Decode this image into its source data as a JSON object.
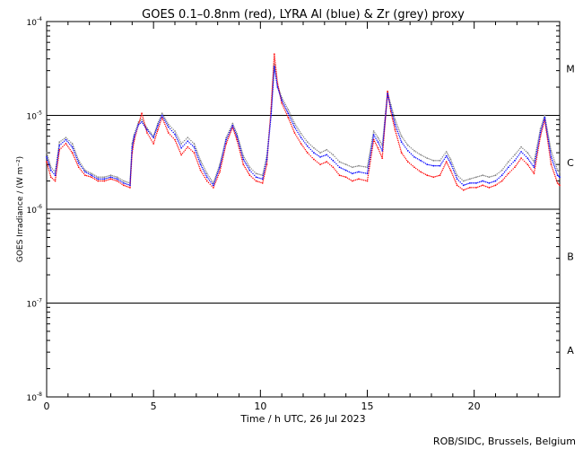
{
  "chart_data": {
    "type": "scatter",
    "title": "GOES 0.1–0.8nm (red), LYRA Al (blue) & Zr (grey) proxy",
    "xlabel": "Time / h UTC, 26 Jul 2023",
    "ylabel": "GOES Irradiance / (W m⁻²)",
    "credit": "ROB/SIDC, Brussels, Belgium",
    "xlim": [
      0,
      24
    ],
    "ylim_log10": [
      -8,
      -4
    ],
    "log_scale_y": true,
    "x_ticks": [
      {
        "value": 0,
        "label": "0"
      },
      {
        "value": 5,
        "label": "5"
      },
      {
        "value": 10,
        "label": "10"
      },
      {
        "value": 15,
        "label": "15"
      },
      {
        "value": 20,
        "label": "20"
      }
    ],
    "y_ticks": [
      {
        "exp": -8,
        "label": "10",
        "sup": "-8"
      },
      {
        "exp": -7,
        "label": "10",
        "sup": "-7"
      },
      {
        "exp": -6,
        "label": "10",
        "sup": "-6"
      },
      {
        "exp": -5,
        "label": "10",
        "sup": "-5"
      },
      {
        "exp": -4,
        "label": "10",
        "sup": "-4"
      }
    ],
    "flare_classes": [
      {
        "label": "A",
        "exp": -7.5
      },
      {
        "label": "B",
        "exp": -6.5
      },
      {
        "label": "C",
        "exp": -5.5
      },
      {
        "label": "M",
        "exp": -4.5
      }
    ],
    "class_lines_exp": [
      -7,
      -6,
      -5
    ],
    "series": [
      {
        "color": "#ff0000",
        "x": [
          0,
          0.2,
          0.4,
          0.6,
          0.9,
          1.2,
          1.5,
          1.8,
          2.1,
          2.4,
          2.7,
          3.0,
          3.3,
          3.6,
          3.9,
          4.0,
          4.1,
          4.3,
          4.45,
          4.7,
          5.0,
          5.2,
          5.4,
          5.7,
          6.0,
          6.3,
          6.6,
          6.9,
          7.2,
          7.5,
          7.8,
          8.1,
          8.4,
          8.7,
          8.9,
          9.2,
          9.5,
          9.8,
          10.1,
          10.3,
          10.5,
          10.65,
          10.8,
          11.0,
          11.3,
          11.6,
          11.9,
          12.2,
          12.5,
          12.8,
          13.1,
          13.4,
          13.7,
          14.0,
          14.3,
          14.6,
          15.0,
          15.3,
          15.5,
          15.7,
          15.95,
          16.1,
          16.3,
          16.6,
          16.9,
          17.2,
          17.5,
          17.8,
          18.1,
          18.4,
          18.7,
          18.9,
          19.2,
          19.5,
          19.8,
          20.1,
          20.4,
          20.7,
          21.0,
          21.3,
          21.6,
          21.9,
          22.2,
          22.5,
          22.8,
          23.1,
          23.3,
          23.6,
          23.9,
          24.0
        ],
        "y": [
          3.2e-06,
          2.2e-06,
          2e-06,
          4.3e-06,
          5e-06,
          4e-06,
          2.8e-06,
          2.3e-06,
          2.2e-06,
          2e-06,
          2e-06,
          2.1e-06,
          2e-06,
          1.8e-06,
          1.7e-06,
          4e-06,
          5.5e-06,
          8e-06,
          1.05e-05,
          6.5e-06,
          5e-06,
          7e-06,
          9.5e-06,
          6.5e-06,
          5.5e-06,
          3.8e-06,
          4.6e-06,
          4e-06,
          2.6e-06,
          2e-06,
          1.7e-06,
          2.5e-06,
          5e-06,
          7.5e-06,
          5.5e-06,
          3e-06,
          2.3e-06,
          2e-06,
          1.9e-06,
          3e-06,
          1.2e-05,
          4.5e-05,
          2.2e-05,
          1.35e-05,
          9.5e-06,
          6.5e-06,
          5e-06,
          4e-06,
          3.4e-06,
          3e-06,
          3.2e-06,
          2.8e-06,
          2.3e-06,
          2.2e-06,
          2e-06,
          2.1e-06,
          2e-06,
          5.5e-06,
          4.5e-06,
          3.5e-06,
          1.8e-05,
          1.1e-05,
          7e-06,
          4e-06,
          3.2e-06,
          2.8e-06,
          2.5e-06,
          2.3e-06,
          2.2e-06,
          2.3e-06,
          3.2e-06,
          2.6e-06,
          1.8e-06,
          1.6e-06,
          1.7e-06,
          1.7e-06,
          1.8e-06,
          1.7e-06,
          1.8e-06,
          2e-06,
          2.4e-06,
          2.8e-06,
          3.5e-06,
          3e-06,
          2.4e-06,
          6e-06,
          9e-06,
          3e-06,
          1.9e-06,
          1.8e-06
        ]
      },
      {
        "color": "#0000ff",
        "x": [
          0,
          0.2,
          0.4,
          0.6,
          0.9,
          1.2,
          1.5,
          1.8,
          2.1,
          2.4,
          2.7,
          3.0,
          3.3,
          3.6,
          3.9,
          4.0,
          4.1,
          4.3,
          4.45,
          4.7,
          5.0,
          5.2,
          5.4,
          5.7,
          6.0,
          6.3,
          6.6,
          6.9,
          7.2,
          7.5,
          7.8,
          8.1,
          8.4,
          8.7,
          8.9,
          9.2,
          9.5,
          9.8,
          10.1,
          10.3,
          10.5,
          10.65,
          10.8,
          11.0,
          11.3,
          11.6,
          11.9,
          12.2,
          12.5,
          12.8,
          13.1,
          13.4,
          13.7,
          14.0,
          14.3,
          14.6,
          15.0,
          15.3,
          15.5,
          15.7,
          15.95,
          16.1,
          16.3,
          16.6,
          16.9,
          17.2,
          17.5,
          17.8,
          18.1,
          18.4,
          18.7,
          18.9,
          19.2,
          19.5,
          19.8,
          20.1,
          20.4,
          20.7,
          21.0,
          21.3,
          21.6,
          21.9,
          22.2,
          22.5,
          22.8,
          23.1,
          23.3,
          23.6,
          23.9,
          24.0
        ],
        "y": [
          3.6e-06,
          2.6e-06,
          2.3e-06,
          4.8e-06,
          5.5e-06,
          4.6e-06,
          3.1e-06,
          2.5e-06,
          2.3e-06,
          2.1e-06,
          2.1e-06,
          2.2e-06,
          2.1e-06,
          1.9e-06,
          1.8e-06,
          4.6e-06,
          6e-06,
          8e-06,
          8.5e-06,
          7e-06,
          5.8e-06,
          7.8e-06,
          1e-05,
          7.5e-06,
          6.3e-06,
          4.5e-06,
          5.3e-06,
          4.6e-06,
          3e-06,
          2.2e-06,
          1.8e-06,
          2.8e-06,
          5.5e-06,
          7.8e-06,
          6e-06,
          3.4e-06,
          2.6e-06,
          2.2e-06,
          2.1e-06,
          3.4e-06,
          1e-05,
          3.3e-05,
          2e-05,
          1.45e-05,
          1.05e-05,
          7.5e-06,
          5.8e-06,
          4.7e-06,
          4e-06,
          3.6e-06,
          3.8e-06,
          3.3e-06,
          2.8e-06,
          2.6e-06,
          2.4e-06,
          2.5e-06,
          2.4e-06,
          6.2e-06,
          5.2e-06,
          4.2e-06,
          1.7e-05,
          1.2e-05,
          8e-06,
          5.2e-06,
          4.2e-06,
          3.6e-06,
          3.3e-06,
          3e-06,
          2.9e-06,
          2.9e-06,
          3.7e-06,
          3.1e-06,
          2.1e-06,
          1.8e-06,
          1.9e-06,
          1.9e-06,
          2e-06,
          1.9e-06,
          2e-06,
          2.3e-06,
          2.8e-06,
          3.3e-06,
          4.1e-06,
          3.5e-06,
          2.8e-06,
          6.6e-06,
          9.5e-06,
          3.6e-06,
          2.3e-06,
          2.2e-06
        ]
      },
      {
        "color": "#808080",
        "x": [
          0,
          0.2,
          0.4,
          0.6,
          0.9,
          1.2,
          1.5,
          1.8,
          2.1,
          2.4,
          2.7,
          3.0,
          3.3,
          3.6,
          3.9,
          4.0,
          4.1,
          4.3,
          4.45,
          4.7,
          5.0,
          5.2,
          5.4,
          5.7,
          6.0,
          6.3,
          6.6,
          6.9,
          7.2,
          7.5,
          7.8,
          8.1,
          8.4,
          8.7,
          8.9,
          9.2,
          9.5,
          9.8,
          10.1,
          10.3,
          10.5,
          10.65,
          10.8,
          11.0,
          11.3,
          11.6,
          11.9,
          12.2,
          12.5,
          12.8,
          13.1,
          13.4,
          13.7,
          14.0,
          14.3,
          14.6,
          15.0,
          15.3,
          15.5,
          15.7,
          15.95,
          16.1,
          16.3,
          16.6,
          16.9,
          17.2,
          17.5,
          17.8,
          18.1,
          18.4,
          18.7,
          18.9,
          19.2,
          19.5,
          19.8,
          20.1,
          20.4,
          20.7,
          21.0,
          21.3,
          21.6,
          21.9,
          22.2,
          22.5,
          22.8,
          23.1,
          23.3,
          23.6,
          23.9,
          24.0
        ],
        "y": [
          4e-06,
          2.8e-06,
          2.5e-06,
          5.2e-06,
          5.8e-06,
          5e-06,
          3.3e-06,
          2.6e-06,
          2.4e-06,
          2.2e-06,
          2.2e-06,
          2.3e-06,
          2.2e-06,
          2e-06,
          1.9e-06,
          5e-06,
          6.3e-06,
          8.5e-06,
          9e-06,
          7.3e-06,
          6e-06,
          8.2e-06,
          1.05e-05,
          8e-06,
          6.8e-06,
          5e-06,
          5.8e-06,
          5e-06,
          3.3e-06,
          2.4e-06,
          1.9e-06,
          3e-06,
          5.8e-06,
          8.2e-06,
          6.4e-06,
          3.7e-06,
          2.8e-06,
          2.4e-06,
          2.3e-06,
          3.7e-06,
          1.1e-05,
          3.5e-05,
          2.1e-05,
          1.55e-05,
          1.15e-05,
          8.2e-06,
          6.4e-06,
          5.2e-06,
          4.5e-06,
          4e-06,
          4.3e-06,
          3.8e-06,
          3.2e-06,
          3e-06,
          2.8e-06,
          2.9e-06,
          2.8e-06,
          6.8e-06,
          5.8e-06,
          4.8e-06,
          1.75e-05,
          1.3e-05,
          9e-06,
          6e-06,
          4.8e-06,
          4.2e-06,
          3.8e-06,
          3.5e-06,
          3.3e-06,
          3.3e-06,
          4.1e-06,
          3.4e-06,
          2.3e-06,
          2e-06,
          2.1e-06,
          2.2e-06,
          2.3e-06,
          2.2e-06,
          2.3e-06,
          2.6e-06,
          3.2e-06,
          3.8e-06,
          4.6e-06,
          4e-06,
          3.2e-06,
          7.2e-06,
          1e-05,
          4.2e-06,
          2.6e-06,
          2.5e-06
        ]
      }
    ]
  }
}
